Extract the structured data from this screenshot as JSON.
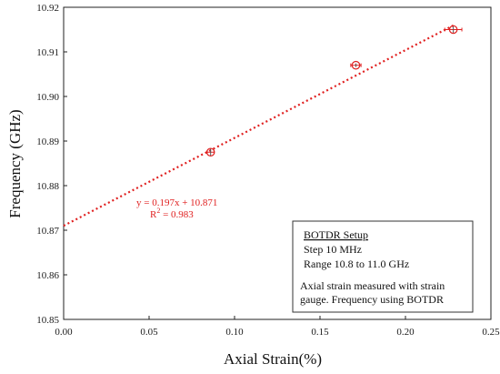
{
  "chart_data": {
    "type": "scatter",
    "xlabel": "Axial Strain(%)",
    "ylabel": "Frequency (GHz)",
    "xlim": [
      0,
      0.25
    ],
    "ylim": [
      10.85,
      10.92
    ],
    "grid": false,
    "x_ticks": [
      "0.00",
      "0.05",
      "0.10",
      "0.15",
      "0.20",
      "0.25"
    ],
    "y_ticks": [
      "10.85",
      "10.86",
      "10.87",
      "10.88",
      "10.89",
      "10.90",
      "10.91",
      "10.92"
    ],
    "points": [
      {
        "x": 0.086,
        "y": 10.8875,
        "xerr": 0.002,
        "yerr": 0.0008
      },
      {
        "x": 0.171,
        "y": 10.907,
        "xerr": 0.003,
        "yerr": 0.0004
      },
      {
        "x": 0.228,
        "y": 10.915,
        "xerr": 0.005,
        "yerr": 0.0008
      }
    ],
    "trendline": {
      "slope": 0.197,
      "intercept": 10.871,
      "x_range": [
        0,
        0.228
      ],
      "color": "#e02020"
    },
    "annotation": {
      "equation": "y = 0.197x + 10.871",
      "r2_label": "R",
      "r2_sup": "2",
      "r2_value": " = 0.983"
    },
    "info_box": {
      "heading": "BOTDR Setup",
      "lines": [
        "Step 10 MHz",
        "Range 10.8 to 11.0 GHz"
      ],
      "note": [
        "Axial strain measured with strain",
        "gauge. Frequency using BOTDR"
      ]
    },
    "marker_color": "#e02020"
  }
}
